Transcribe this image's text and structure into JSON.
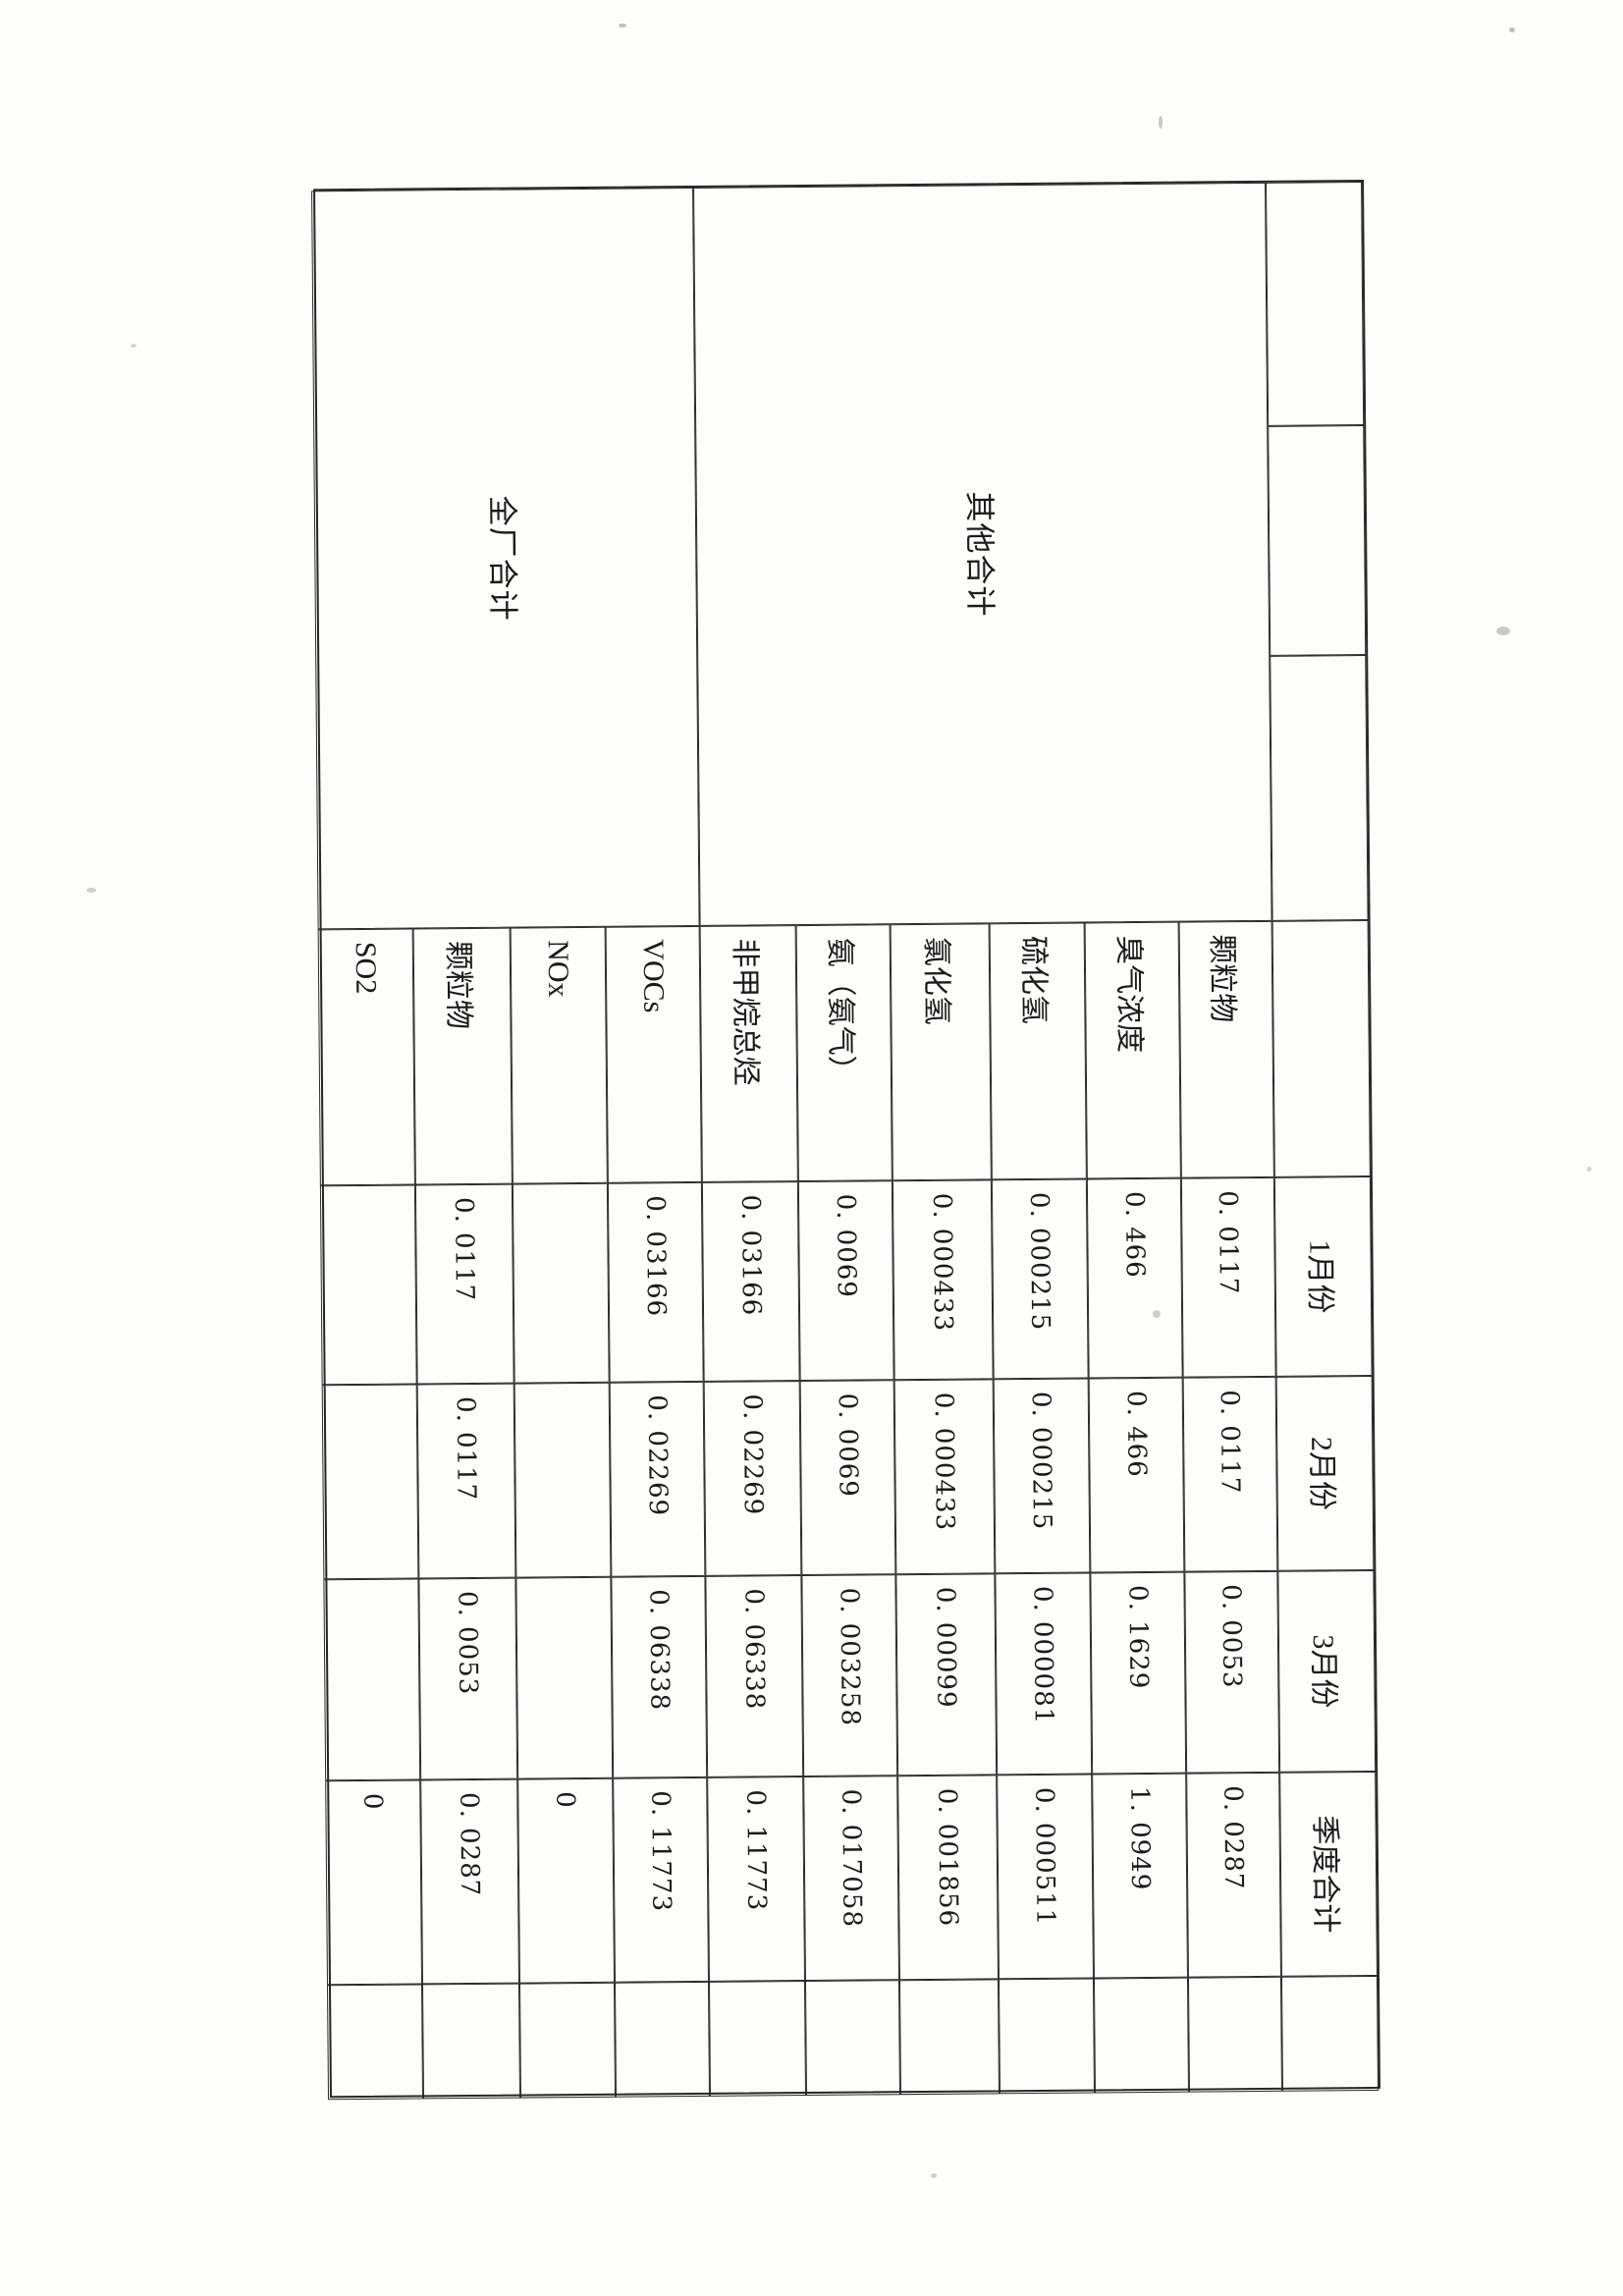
{
  "table": {
    "group_cells": [
      {
        "label": "其他合计"
      },
      {
        "label": "全厂合计"
      }
    ],
    "header": {
      "months": [
        "1月份",
        "2月份",
        "3月份",
        "季度合计"
      ]
    },
    "rows": [
      {
        "name": "颗粒物",
        "values": [
          "0. 0117",
          "0. 0117",
          "0. 0053",
          "0. 0287"
        ]
      },
      {
        "name": "臭气浓度",
        "values": [
          "0. 466",
          "0. 466",
          "0. 1629",
          "1. 0949"
        ]
      },
      {
        "name": "硫化氢",
        "values": [
          "0. 000215",
          "0. 000215",
          "0. 000081",
          "0. 000511"
        ]
      },
      {
        "name": "氯化氢",
        "values": [
          "0. 000433",
          "0. 000433",
          "0. 00099",
          "0. 001856"
        ]
      },
      {
        "name": "氨（氨气）",
        "values": [
          "0. 0069",
          "0. 0069",
          "0. 003258",
          "0. 017058"
        ]
      },
      {
        "name": "非甲烷总烃",
        "values": [
          "0. 03166",
          "0. 02269",
          "0. 06338",
          "0. 11773"
        ]
      },
      {
        "name": "VOCs",
        "values": [
          "0. 03166",
          "0. 02269",
          "0. 06338",
          "0. 11773"
        ]
      },
      {
        "name": "NOx",
        "values": [
          "",
          "",
          "",
          "0"
        ]
      },
      {
        "name": "颗粒物",
        "values": [
          "0. 0117",
          "0. 0117",
          "0. 0053",
          "0. 0287"
        ]
      },
      {
        "name": "SO2",
        "values": [
          "",
          "",
          "",
          "0"
        ]
      }
    ]
  }
}
